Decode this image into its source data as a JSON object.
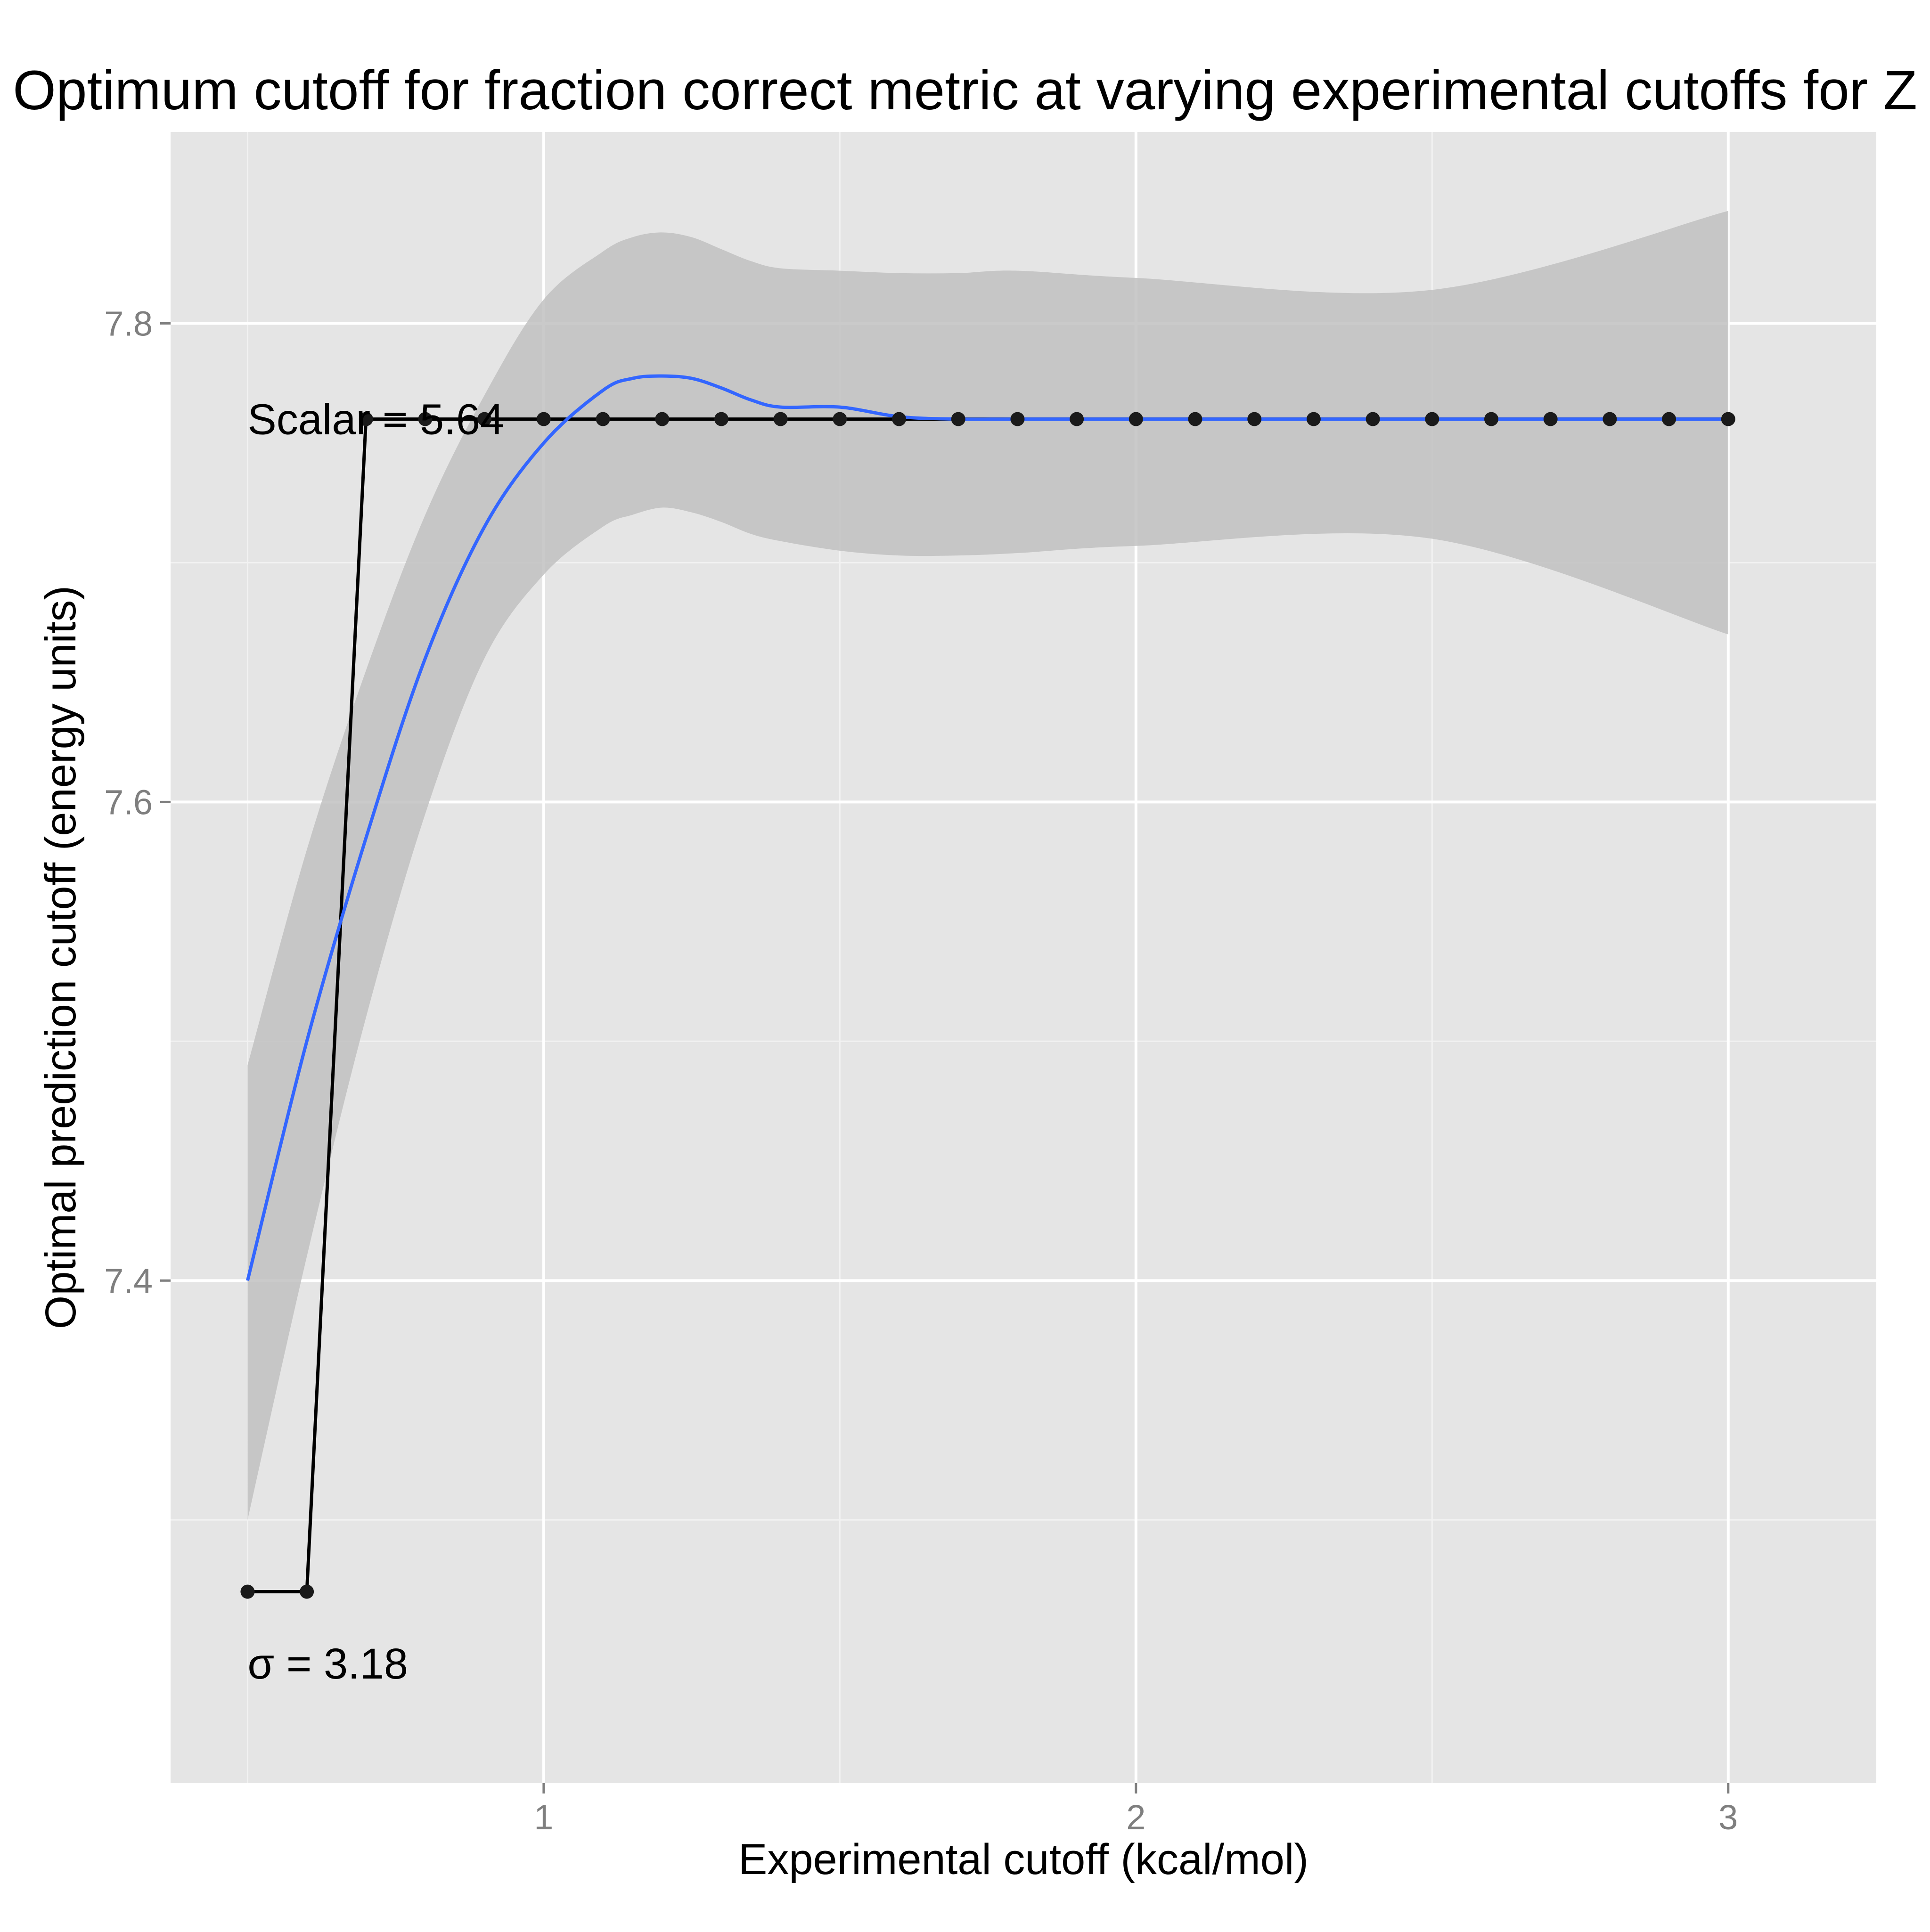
{
  "chart_data": {
    "type": "line",
    "title": "Optimum cutoff for fraction correct metric at varying experimental cutoffs for Z",
    "xlabel": "Experimental cutoff (kcal/mol)",
    "ylabel": "Optimal prediction cutoff (energy units)",
    "xlim": [
      0.37,
      3.25
    ],
    "ylim": [
      7.19,
      7.88
    ],
    "x_ticks": [
      1,
      2,
      3
    ],
    "x_tick_labels": [
      "1",
      "2",
      "3"
    ],
    "y_ticks": [
      7.4,
      7.6,
      7.8
    ],
    "y_tick_labels": [
      "7.4",
      "7.6",
      "7.8"
    ],
    "grid": true,
    "series": [
      {
        "kind": "line+points",
        "color": "#000000",
        "x": [
          0.5,
          0.6,
          0.7,
          0.8,
          0.9,
          1.0,
          1.1,
          1.2,
          1.3,
          1.4,
          1.5,
          1.6,
          1.7,
          1.8,
          1.9,
          2.0,
          2.1,
          2.2,
          2.3,
          2.4,
          2.5,
          2.6,
          2.7,
          2.8,
          2.9,
          3.0
        ],
        "y": [
          7.27,
          7.27,
          7.76,
          7.76,
          7.76,
          7.76,
          7.76,
          7.76,
          7.76,
          7.76,
          7.76,
          7.76,
          7.76,
          7.76,
          7.76,
          7.76,
          7.76,
          7.76,
          7.76,
          7.76,
          7.76,
          7.76,
          7.76,
          7.76,
          7.76,
          7.76
        ]
      },
      {
        "kind": "smooth",
        "color": "#3366ff",
        "x": [
          0.5,
          0.6,
          0.7,
          0.8,
          0.9,
          1.0,
          1.1,
          1.15,
          1.2,
          1.25,
          1.3,
          1.35,
          1.4,
          1.5,
          1.6,
          1.7,
          1.8,
          2.0,
          2.5,
          3.0
        ],
        "y": [
          7.4,
          7.5,
          7.585,
          7.66,
          7.715,
          7.75,
          7.772,
          7.777,
          7.778,
          7.777,
          7.773,
          7.768,
          7.765,
          7.765,
          7.761,
          7.76,
          7.76,
          7.76,
          7.76,
          7.76
        ],
        "ci_upper": [
          7.49,
          7.58,
          7.655,
          7.72,
          7.77,
          7.81,
          7.83,
          7.836,
          7.838,
          7.836,
          7.831,
          7.826,
          7.823,
          7.822,
          7.821,
          7.821,
          7.822,
          7.819,
          7.814,
          7.847
        ],
        "ci_lower": [
          7.3,
          7.41,
          7.51,
          7.595,
          7.66,
          7.695,
          7.715,
          7.72,
          7.723,
          7.721,
          7.717,
          7.712,
          7.709,
          7.705,
          7.703,
          7.703,
          7.704,
          7.707,
          7.71,
          7.67
        ]
      }
    ],
    "colors": {
      "panel": "#e5e5e5",
      "grid": "#ffffff",
      "ribbon": "#c1c1c1",
      "smooth": "#3366ff",
      "points": "#000000"
    },
    "annotations": [
      {
        "text": "Scalar = 5.64",
        "x": 0.5,
        "y": 7.76
      },
      {
        "text": "σ = 3.18",
        "x": 0.5,
        "y": 7.24
      }
    ]
  }
}
